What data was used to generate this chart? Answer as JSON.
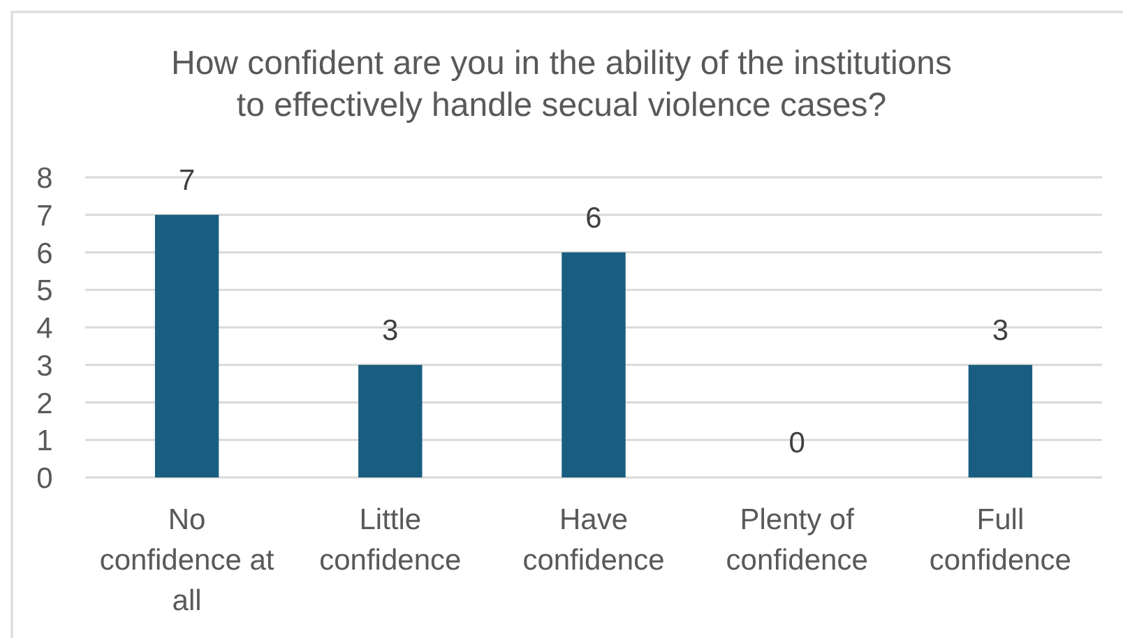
{
  "chart_data": {
    "type": "bar",
    "title": "How confident are you in the ability of the institutions to effectively handle secual violence cases?",
    "categories": [
      "No confidence at all",
      "Little confidence",
      "Have confidence",
      "Plenty of confidence",
      "Full confidence"
    ],
    "values": [
      7,
      3,
      6,
      0,
      3
    ],
    "color": "#195e80",
    "ylim": [
      0,
      8
    ],
    "yticks": [
      0,
      1,
      2,
      3,
      4,
      5,
      6,
      7,
      8
    ],
    "grid": "y",
    "data_labels": true
  }
}
